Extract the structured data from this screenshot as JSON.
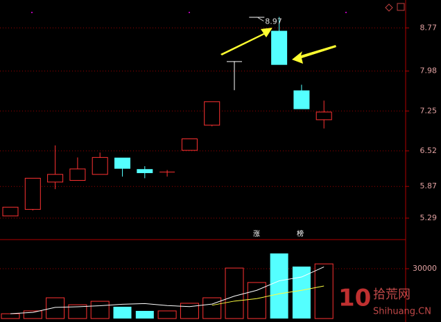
{
  "chart_data": [
    {
      "type": "candlestick",
      "open": [
        5.33,
        5.45,
        5.95,
        5.98,
        6.09,
        6.39,
        6.18,
        6.13,
        6.53,
        6.99,
        8.16,
        8.97,
        8.71,
        7.62,
        7.09
      ],
      "high": [
        5.49,
        6.02,
        6.62,
        6.4,
        6.49,
        6.39,
        6.24,
        6.17,
        6.74,
        7.42,
        8.16,
        8.97,
        8.97,
        7.73,
        7.44
      ],
      "low": [
        5.33,
        5.43,
        5.82,
        5.98,
        6.09,
        6.05,
        6.02,
        6.05,
        6.53,
        6.97,
        7.63,
        8.97,
        8.1,
        7.29,
        6.93
      ],
      "close": [
        5.49,
        6.02,
        6.09,
        6.19,
        6.4,
        6.2,
        6.12,
        6.14,
        6.74,
        7.42,
        8.16,
        8.97,
        8.1,
        7.29,
        7.23
      ],
      "up_color": "#ff3232",
      "down_color": "#54ffff",
      "flat_color": "#ffffff",
      "max_label": "8.97",
      "ylim": [
        4.91,
        9.28
      ],
      "yticks": [
        8.77,
        7.98,
        7.25,
        6.52,
        5.87,
        5.29
      ],
      "grid": true
    },
    {
      "type": "bar",
      "values": [
        2900,
        4600,
        12500,
        8300,
        10400,
        7100,
        4600,
        4600,
        9200,
        12500,
        30400,
        21700,
        39200,
        31300,
        32900
      ],
      "lines": [
        {
          "color": "#ffffff",
          "values": [
            2900,
            3700,
            6700,
            7100,
            7700,
            8600,
            9000,
            7800,
            7200,
            8700,
            13500,
            17000,
            22700,
            25000,
            31100
          ]
        },
        {
          "color": "#ffff40",
          "values": [
            null,
            null,
            null,
            null,
            null,
            null,
            null,
            null,
            null,
            8000,
            10500,
            12000,
            14900,
            17000,
            19600
          ]
        }
      ],
      "tags": [
        "涨",
        "榜"
      ],
      "ylim": [
        0,
        46700
      ],
      "yticks": [
        30000
      ],
      "grid": true
    }
  ],
  "watermark": {
    "logo": "10",
    "name": "拾荒网",
    "site": "Shihuang.CN"
  }
}
